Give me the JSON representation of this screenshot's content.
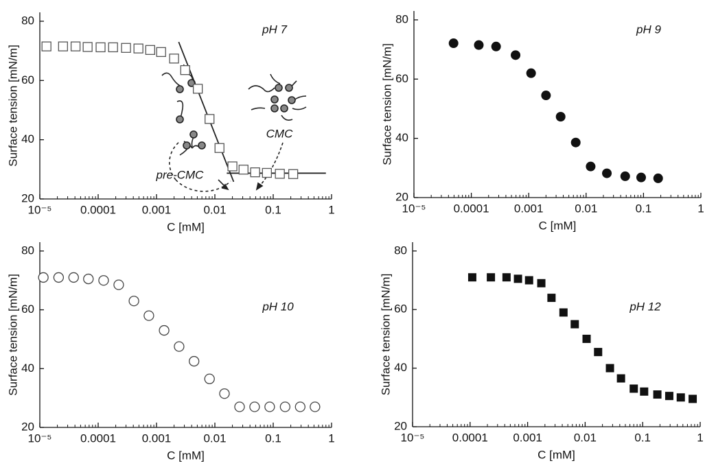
{
  "chart_data": [
    {
      "type": "scatter",
      "annotations": [
        "pH 7",
        "pre-CMC",
        "CMC"
      ],
      "x_label": "C [mM]",
      "y_label": "Surface tension [mN/m]",
      "xscale": "log",
      "xlim": [
        1e-05,
        1
      ],
      "xticks": [
        {
          "value": 1e-05,
          "label": "10⁻⁵"
        },
        0.0001,
        0.001,
        0.01,
        0.1,
        1
      ],
      "ylim": [
        20,
        83
      ],
      "yticks": [
        20,
        40,
        60,
        80
      ],
      "marker": "square-open",
      "color": "#555555",
      "x": [
        1.3e-05,
        2.5e-05,
        4.1e-05,
        6.6e-05,
        0.00011,
        0.00018,
        0.0003,
        0.00049,
        0.00078,
        0.0012,
        0.002,
        0.0031,
        0.0051,
        0.0081,
        0.012,
        0.02,
        0.031,
        0.049,
        0.078,
        0.13,
        0.22
      ],
      "values": [
        71.5,
        71.5,
        71.5,
        71.3,
        71.2,
        71.2,
        71,
        70.8,
        70.3,
        69.6,
        67.4,
        63.5,
        57.2,
        47,
        37.2,
        31,
        29.9,
        29,
        28.8,
        28.5,
        28.4
      ],
      "lines": [
        {
          "color": "#222222",
          "x": [
            0.0024,
            0.021
          ],
          "values": [
            73,
            25.8
          ]
        },
        {
          "color": "#222222",
          "x": [
            0.016,
            0.8
          ],
          "values": [
            28.7,
            28.7
          ]
        }
      ]
    },
    {
      "type": "scatter",
      "annotations": [
        "pH 9"
      ],
      "x_label": "C [mM]",
      "y_label": "Surface tension [mN/m]",
      "xscale": "log",
      "xlim": [
        1e-05,
        1
      ],
      "xticks": [
        {
          "value": 1e-05,
          "label": "10⁻⁵"
        },
        0.0001,
        0.001,
        0.01,
        0.1,
        1
      ],
      "ylim": [
        20,
        83
      ],
      "yticks": [
        20,
        40,
        60,
        80
      ],
      "marker": "circle-filled",
      "color": "#111111",
      "x": [
        4.9e-05,
        0.000135,
        0.00027,
        0.00059,
        0.0011,
        0.002,
        0.0036,
        0.0066,
        0.012,
        0.023,
        0.048,
        0.091,
        0.18
      ],
      "values": [
        72.1,
        71.5,
        71,
        68.1,
        62,
        54.5,
        47.3,
        38.6,
        30.5,
        28.2,
        27.2,
        26.8,
        26.5
      ]
    },
    {
      "type": "scatter",
      "annotations": [
        "pH 10"
      ],
      "x_label": "C [mM]",
      "y_label": "Surface tension [mN/m]",
      "xscale": "log",
      "xlim": [
        1e-05,
        1
      ],
      "xticks": [
        {
          "value": 1e-05,
          "label": "10⁻⁵"
        },
        0.0001,
        0.001,
        0.01,
        0.1,
        1
      ],
      "ylim": [
        20,
        83
      ],
      "yticks": [
        20,
        40,
        60,
        80
      ],
      "marker": "circle-open",
      "color": "#444444",
      "x": [
        1.15e-05,
        2.1e-05,
        3.8e-05,
        6.8e-05,
        0.000124,
        0.000225,
        0.00041,
        0.00074,
        0.00135,
        0.00244,
        0.0044,
        0.0081,
        0.0146,
        0.0265,
        0.048,
        0.087,
        0.16,
        0.29,
        0.52
      ],
      "values": [
        71,
        71,
        71,
        70.5,
        70,
        68.5,
        63,
        58,
        53,
        47.5,
        42.5,
        36.5,
        31.5,
        27,
        27,
        27,
        27,
        27,
        27
      ]
    },
    {
      "type": "scatter",
      "annotations": [
        "pH 12"
      ],
      "x_label": "C [mM]",
      "y_label": "Surface tension [mN/m]",
      "xscale": "log",
      "xlim": [
        1e-05,
        1
      ],
      "xticks": [
        {
          "value": 1e-05,
          "label": "10⁻⁵"
        },
        0.0001,
        0.001,
        0.01,
        0.1,
        1
      ],
      "ylim": [
        20,
        83
      ],
      "yticks": [
        20,
        40,
        60,
        80
      ],
      "marker": "square-filled",
      "color": "#111111",
      "x": [
        0.000109,
        0.00023,
        0.00043,
        0.00068,
        0.00106,
        0.00173,
        0.0026,
        0.0042,
        0.0066,
        0.0106,
        0.0168,
        0.027,
        0.042,
        0.07,
        0.106,
        0.18,
        0.29,
        0.46,
        0.74
      ],
      "values": [
        71,
        71,
        71,
        70.5,
        70,
        69,
        64,
        59,
        55,
        50,
        45.5,
        40,
        36.5,
        33,
        32,
        31,
        30.5,
        30,
        29.5
      ]
    }
  ]
}
